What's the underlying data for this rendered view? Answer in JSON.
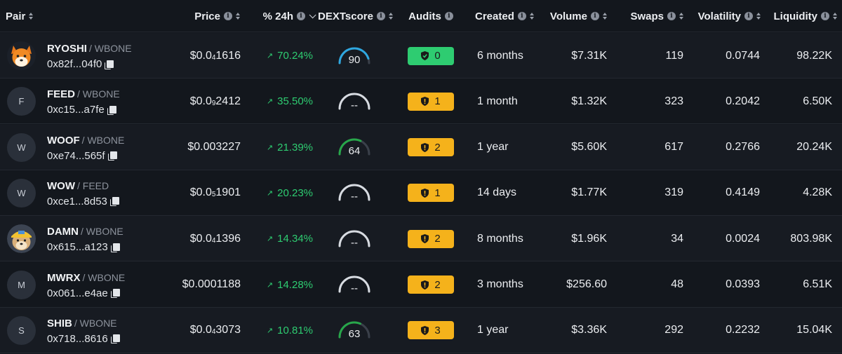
{
  "columns": [
    {
      "key": "pair",
      "label": "Pair",
      "info": false,
      "sort": "both",
      "align": "left"
    },
    {
      "key": "price",
      "label": "Price",
      "info": true,
      "sort": "both",
      "align": "right"
    },
    {
      "key": "change",
      "label": "% 24h",
      "info": true,
      "sort": "desc",
      "align": "right"
    },
    {
      "key": "score",
      "label": "DEXTscore",
      "info": true,
      "sort": "both",
      "align": "center"
    },
    {
      "key": "audits",
      "label": "Audits",
      "info": true,
      "sort": "none",
      "align": "center"
    },
    {
      "key": "created",
      "label": "Created",
      "info": true,
      "sort": "both",
      "align": "left"
    },
    {
      "key": "volume",
      "label": "Volume",
      "info": true,
      "sort": "both",
      "align": "right"
    },
    {
      "key": "swaps",
      "label": "Swaps",
      "info": true,
      "sort": "both",
      "align": "right"
    },
    {
      "key": "volatility",
      "label": "Volatility",
      "info": true,
      "sort": "both",
      "align": "right"
    },
    {
      "key": "liquidity",
      "label": "Liquidity",
      "info": true,
      "sort": "both",
      "align": "right"
    }
  ],
  "colors": {
    "positive": "#2ecc71",
    "audit_ok": "#2ecc71",
    "audit_warn": "#f5b21b",
    "gauge_high": "#2ea7e0",
    "gauge_mid": "#27a74a",
    "gauge_empty": "#d7dbe1"
  },
  "rows": [
    {
      "avatar_letter": "",
      "avatar_icon": "shiba-dog-logo-icon",
      "name": "RYOSHI",
      "quote": "WBONE",
      "address": "0x82f...04f0",
      "price_prefix": "$0.0",
      "price_sub": "4",
      "price_rest": "1616",
      "change": "70.24%",
      "score": "90",
      "score_value": 90,
      "audit_count": "0",
      "audit_status": "ok",
      "created": "6 months",
      "volume": "$7.31K",
      "swaps": "119",
      "volatility": "0.0744",
      "liquidity": "98.22K"
    },
    {
      "avatar_letter": "F",
      "avatar_icon": "",
      "name": "FEED",
      "quote": "WBONE",
      "address": "0xc15...a7fe",
      "price_prefix": "$0.0",
      "price_sub": "9",
      "price_rest": "2412",
      "change": "35.50%",
      "score": "--",
      "score_value": null,
      "audit_count": "1",
      "audit_status": "warn",
      "created": "1 month",
      "volume": "$1.32K",
      "swaps": "323",
      "volatility": "0.2042",
      "liquidity": "6.50K"
    },
    {
      "avatar_letter": "W",
      "avatar_icon": "",
      "name": "WOOF",
      "quote": "WBONE",
      "address": "0xe74...565f",
      "price_prefix": "$0.003227",
      "price_sub": "",
      "price_rest": "",
      "change": "21.39%",
      "score": "64",
      "score_value": 64,
      "audit_count": "2",
      "audit_status": "warn",
      "created": "1 year",
      "volume": "$5.60K",
      "swaps": "617",
      "volatility": "0.2766",
      "liquidity": "20.24K"
    },
    {
      "avatar_letter": "W",
      "avatar_icon": "",
      "name": "WOW",
      "quote": "FEED",
      "address": "0xce1...8d53",
      "price_prefix": "$0.0",
      "price_sub": "5",
      "price_rest": "1901",
      "change": "20.23%",
      "score": "--",
      "score_value": null,
      "audit_count": "1",
      "audit_status": "warn",
      "created": "14 days",
      "volume": "$1.77K",
      "swaps": "319",
      "volatility": "0.4149",
      "liquidity": "4.28K"
    },
    {
      "avatar_letter": "",
      "avatar_icon": "doge-helmet-logo-icon",
      "name": "DAMN",
      "quote": "WBONE",
      "address": "0x615...a123",
      "price_prefix": "$0.0",
      "price_sub": "4",
      "price_rest": "1396",
      "change": "14.34%",
      "score": "--",
      "score_value": null,
      "audit_count": "2",
      "audit_status": "warn",
      "created": "8 months",
      "volume": "$1.96K",
      "swaps": "34",
      "volatility": "0.0024",
      "liquidity": "803.98K"
    },
    {
      "avatar_letter": "M",
      "avatar_icon": "",
      "name": "MWRX",
      "quote": "WBONE",
      "address": "0x061...e4ae",
      "price_prefix": "$0.0001188",
      "price_sub": "",
      "price_rest": "",
      "change": "14.28%",
      "score": "--",
      "score_value": null,
      "audit_count": "2",
      "audit_status": "warn",
      "created": "3 months",
      "volume": "$256.60",
      "swaps": "48",
      "volatility": "0.0393",
      "liquidity": "6.51K"
    },
    {
      "avatar_letter": "S",
      "avatar_icon": "",
      "name": "SHIB",
      "quote": "WBONE",
      "address": "0x718...8616",
      "price_prefix": "$0.0",
      "price_sub": "4",
      "price_rest": "3073",
      "change": "10.81%",
      "score": "63",
      "score_value": 63,
      "audit_count": "3",
      "audit_status": "warn",
      "created": "1 year",
      "volume": "$3.36K",
      "swaps": "292",
      "volatility": "0.2232",
      "liquidity": "15.04K"
    }
  ]
}
